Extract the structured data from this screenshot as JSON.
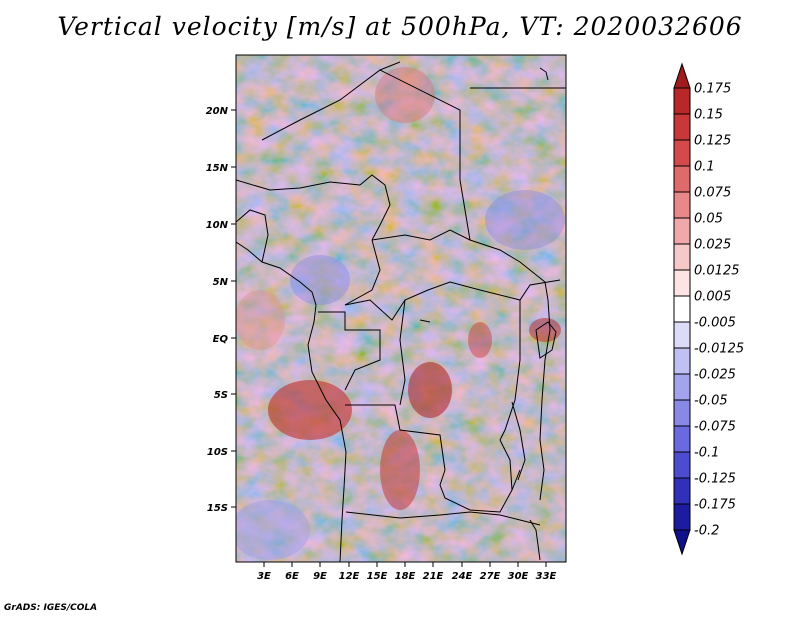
{
  "title": "Vertical velocity [m/s] at 500hPa, VT: 2020032606",
  "credit": "GrADS: IGES/COLA",
  "map": {
    "lat_labels": [
      "20N",
      "15N",
      "10N",
      "5N",
      "EQ",
      "5S",
      "10S",
      "15S"
    ],
    "lon_labels": [
      "3E",
      "6E",
      "9E",
      "12E",
      "15E",
      "18E",
      "21E",
      "24E",
      "27E",
      "30E",
      "33E"
    ]
  },
  "colorbar": {
    "labels": [
      "0.175",
      "0.15",
      "0.125",
      "0.1",
      "0.075",
      "0.05",
      "0.025",
      "0.0125",
      "0.005",
      "-0.005",
      "-0.0125",
      "-0.025",
      "-0.05",
      "-0.075",
      "-0.1",
      "-0.125",
      "-0.175",
      "-0.2"
    ],
    "colors": [
      "#a01c1c",
      "#b82828",
      "#c83838",
      "#d44a4a",
      "#de6a6a",
      "#e88888",
      "#f0a8a8",
      "#f6c8c8",
      "#fce4e4",
      "#ffffff",
      "#dcdcf8",
      "#c0c0f4",
      "#a4a4ee",
      "#8888e6",
      "#6a6ae0",
      "#4c4cd0",
      "#3030b8",
      "#1c1ca0",
      "#10108a"
    ]
  }
}
